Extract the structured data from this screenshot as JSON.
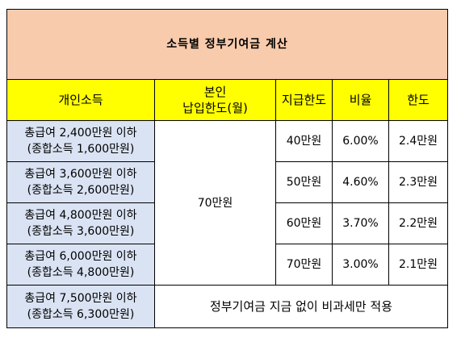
{
  "title": "소득별 정부기여금 계산",
  "headers": {
    "income": "개인소득",
    "deposit_line1": "본인",
    "deposit_line2": "납입한도(월)",
    "support_limit": "지급한도",
    "ratio": "비율",
    "limit": "한도"
  },
  "deposit_value": "70만원",
  "rows": [
    {
      "gross": "총급여 2,400만원 이하",
      "combined": "(종합소득 1,600만원)",
      "support_limit": "40만원",
      "ratio": "6.00%",
      "limit": "2.4만원"
    },
    {
      "gross": "총급여 3,600만원 이하",
      "combined": "(종합소득 2,600만원)",
      "support_limit": "50만원",
      "ratio": "4.60%",
      "limit": "2.3만원"
    },
    {
      "gross": "총급여 4,800만원 이하",
      "combined": "(종합소득 3,600만원)",
      "support_limit": "60만원",
      "ratio": "3.70%",
      "limit": "2.2만원"
    },
    {
      "gross": "총급여 6,000만원 이하",
      "combined": "(종합소득 4,800만원)",
      "support_limit": "70만원",
      "ratio": "3.00%",
      "limit": "2.1만원"
    }
  ],
  "last_row": {
    "gross": "총급여 7,500만원 이하",
    "combined": "(종합소득 6,300만원)",
    "note": "정부기여금 지금 없이 비과세만 적용"
  },
  "colors": {
    "title_bg": "#f8cbad",
    "header_bg": "#ffff00",
    "income_bg": "#dae3f3"
  }
}
